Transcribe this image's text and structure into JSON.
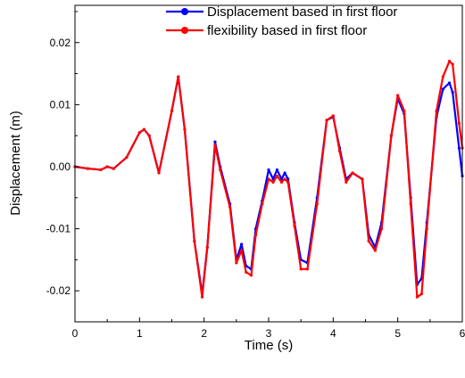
{
  "chart_data": {
    "type": "line",
    "title": "",
    "xlabel": "Time (s)",
    "ylabel": "Displacement (m)",
    "xlim": [
      0,
      6
    ],
    "ylim": [
      -0.025,
      0.026
    ],
    "xticks": [
      0,
      1,
      2,
      3,
      4,
      5,
      6
    ],
    "xtick_labels": [
      "0",
      "1",
      "2",
      "3",
      "4",
      "5",
      "6"
    ],
    "yticks": [
      -0.02,
      -0.01,
      0.0,
      0.01,
      0.02
    ],
    "ytick_labels": [
      "-0.02",
      "-0.01",
      "0.00",
      "0.01",
      "0.02"
    ],
    "grid": false,
    "legend_position": "top-right",
    "series": [
      {
        "name": "Displacement based in first floor",
        "color": "#0000ff",
        "x": [
          0,
          0.2,
          0.4,
          0.5,
          0.6,
          0.8,
          1.0,
          1.07,
          1.15,
          1.3,
          1.5,
          1.6,
          1.7,
          1.85,
          1.97,
          2.05,
          2.17,
          2.25,
          2.4,
          2.5,
          2.58,
          2.65,
          2.73,
          2.8,
          2.9,
          3.0,
          3.07,
          3.13,
          3.2,
          3.25,
          3.3,
          3.4,
          3.5,
          3.6,
          3.75,
          3.9,
          4.0,
          4.1,
          4.2,
          4.3,
          4.45,
          4.55,
          4.65,
          4.75,
          4.9,
          5.0,
          5.1,
          5.2,
          5.3,
          5.37,
          5.45,
          5.6,
          5.7,
          5.8,
          5.85,
          5.95,
          6.0
        ],
        "y": [
          0.0,
          -0.0003,
          -0.0005,
          0.0,
          -0.0003,
          0.0015,
          0.0055,
          0.006,
          0.005,
          -0.001,
          0.009,
          0.0145,
          0.006,
          -0.012,
          -0.0205,
          -0.013,
          0.004,
          0.0,
          -0.006,
          -0.015,
          -0.0125,
          -0.016,
          -0.0165,
          -0.01,
          -0.0055,
          -0.0005,
          -0.002,
          -0.0005,
          -0.002,
          -0.001,
          -0.002,
          -0.009,
          -0.015,
          -0.0155,
          -0.005,
          0.0075,
          0.008,
          0.003,
          -0.002,
          -0.001,
          -0.002,
          -0.011,
          -0.013,
          -0.009,
          0.005,
          0.011,
          0.0085,
          -0.005,
          -0.019,
          -0.018,
          -0.009,
          0.008,
          0.0125,
          0.0135,
          0.012,
          0.003,
          -0.0015
        ]
      },
      {
        "name": "flexibility based in first floor",
        "color": "#ff0000",
        "x": [
          0,
          0.2,
          0.4,
          0.5,
          0.6,
          0.8,
          1.0,
          1.07,
          1.15,
          1.3,
          1.5,
          1.6,
          1.7,
          1.85,
          1.97,
          2.05,
          2.17,
          2.25,
          2.4,
          2.5,
          2.58,
          2.65,
          2.73,
          2.8,
          2.9,
          3.0,
          3.07,
          3.13,
          3.2,
          3.25,
          3.3,
          3.4,
          3.5,
          3.6,
          3.75,
          3.9,
          4.0,
          4.1,
          4.2,
          4.3,
          4.45,
          4.55,
          4.65,
          4.75,
          4.9,
          5.0,
          5.1,
          5.2,
          5.3,
          5.37,
          5.45,
          5.6,
          5.7,
          5.8,
          5.85,
          5.95,
          6.0
        ],
        "y": [
          0.0,
          -0.0003,
          -0.0005,
          0.0,
          -0.0003,
          0.0015,
          0.0055,
          0.006,
          0.005,
          -0.001,
          0.009,
          0.0145,
          0.006,
          -0.012,
          -0.021,
          -0.013,
          0.0035,
          -0.0005,
          -0.0065,
          -0.0155,
          -0.0135,
          -0.017,
          -0.0175,
          -0.011,
          -0.006,
          -0.002,
          -0.0025,
          -0.0015,
          -0.0025,
          -0.002,
          -0.0025,
          -0.0095,
          -0.0165,
          -0.0165,
          -0.006,
          0.0075,
          0.0082,
          0.0025,
          -0.0025,
          -0.001,
          -0.002,
          -0.012,
          -0.0135,
          -0.01,
          0.005,
          0.0115,
          0.009,
          -0.006,
          -0.021,
          -0.0205,
          -0.01,
          0.009,
          0.0145,
          0.017,
          0.0165,
          0.007,
          0.003
        ]
      }
    ]
  }
}
